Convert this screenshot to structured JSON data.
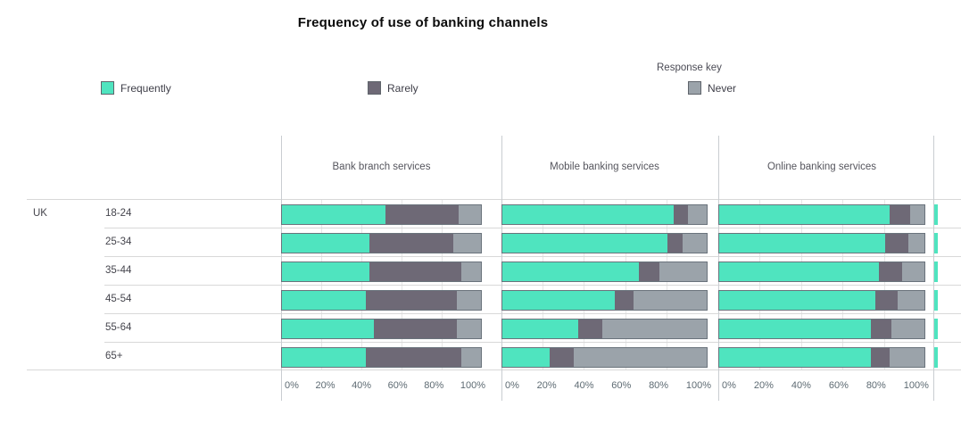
{
  "title": "Frequency of use of banking channels",
  "legend": {
    "heading": "Response key",
    "items": [
      {
        "label": "Frequently",
        "color": "#4FE4BF"
      },
      {
        "label": "Rarely",
        "color": "#6E6976"
      },
      {
        "label": "Never",
        "color": "#9BA3AA"
      }
    ]
  },
  "row_group_label": "UK",
  "chart_data": {
    "type": "bar",
    "orientation": "horizontal",
    "stacked": true,
    "unit": "%",
    "title": "Frequency of use of banking channels",
    "group": "UK",
    "categories": [
      "18-24",
      "25-34",
      "35-44",
      "45-54",
      "55-64",
      "65+"
    ],
    "xlim": [
      0,
      100
    ],
    "x_ticks": [
      "0%",
      "20%",
      "40%",
      "60%",
      "80%",
      "100%"
    ],
    "grid": true,
    "legend_position": "top",
    "colors": {
      "Frequently": "#4FE4BF",
      "Rarely": "#6E6976",
      "Never": "#9BA3AA"
    },
    "panels": [
      {
        "title": "Bank branch services",
        "series": [
          {
            "name": "Frequently",
            "values": [
              52,
              44,
              44,
              42,
              46,
              42
            ]
          },
          {
            "name": "Rarely",
            "values": [
              37,
              42,
              46,
              46,
              42,
              48
            ]
          },
          {
            "name": "Never",
            "values": [
              11,
              14,
              10,
              12,
              12,
              10
            ]
          }
        ]
      },
      {
        "title": "Mobile banking services",
        "series": [
          {
            "name": "Frequently",
            "values": [
              84,
              81,
              67,
              55,
              37,
              23
            ]
          },
          {
            "name": "Rarely",
            "values": [
              7,
              7,
              10,
              9,
              12,
              12
            ]
          },
          {
            "name": "Never",
            "values": [
              9,
              12,
              23,
              36,
              51,
              65
            ]
          }
        ]
      },
      {
        "title": "Online banking services",
        "series": [
          {
            "name": "Frequently",
            "values": [
              83,
              81,
              78,
              76,
              74,
              74
            ]
          },
          {
            "name": "Rarely",
            "values": [
              10,
              11,
              11,
              11,
              10,
              9
            ]
          },
          {
            "name": "Never",
            "values": [
              7,
              8,
              11,
              13,
              16,
              17
            ]
          }
        ]
      }
    ]
  }
}
